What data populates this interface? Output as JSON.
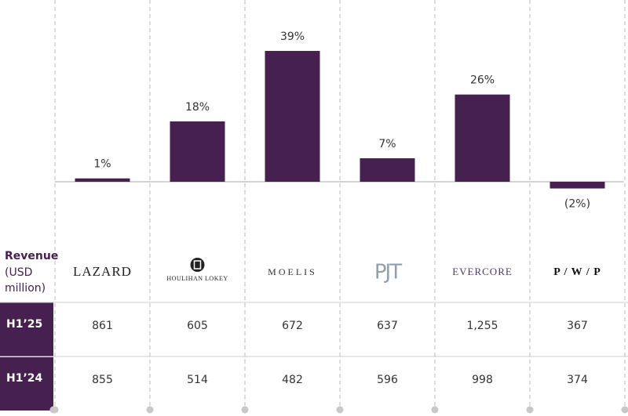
{
  "chart_data": {
    "type": "bar",
    "categories": [
      "LAZARD",
      "HOULIHAN LOKEY",
      "MOELIS",
      "PJT",
      "EVERCORE",
      "P / W / P"
    ],
    "values": [
      1,
      18,
      39,
      7,
      26,
      -2
    ],
    "value_labels": [
      "1%",
      "18%",
      "39%",
      "7%",
      "26%",
      "(2%)"
    ],
    "color": "#46204f"
  },
  "table": {
    "row_header_title": "Revenue",
    "row_header_unit": [
      "(USD",
      "million)"
    ],
    "rows": [
      {
        "label": "H1’25",
        "values": [
          "861",
          "605",
          "672",
          "637",
          "1,255",
          "367"
        ]
      },
      {
        "label": "H1’24",
        "values": [
          "855",
          "514",
          "482",
          "596",
          "998",
          "374"
        ]
      }
    ]
  }
}
